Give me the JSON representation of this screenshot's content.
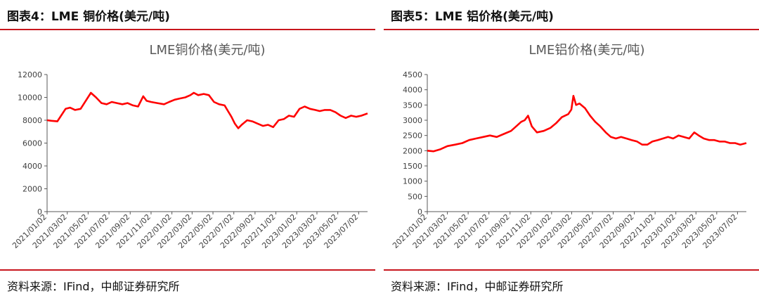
{
  "panels": [
    {
      "figure_title": "图表4：LME 铜价格(美元/吨)",
      "source": "资料来源：IFind，中邮证券研究所",
      "chart_data": {
        "type": "line",
        "title": "LME铜价格(美元/吨)",
        "xlabel": "",
        "ylabel": "",
        "ylim": [
          0,
          12000
        ],
        "yticks": [
          0,
          2000,
          4000,
          6000,
          8000,
          10000,
          12000
        ],
        "x_tick_labels": [
          "2021/01/02",
          "2021/03/02",
          "2021/05/02",
          "2021/07/02",
          "2021/09/02",
          "2021/11/02",
          "2022/01/02",
          "2022/03/02",
          "2022/05/02",
          "2022/07/02",
          "2022/09/02",
          "2022/11/02",
          "2023/01/02",
          "2023/03/02",
          "2023/05/02",
          "2023/07/02"
        ],
        "grid": false,
        "legend": "none",
        "line_color": "#ff0000",
        "x": [
          "2021/01/02",
          "2021/01/15",
          "2021/02/01",
          "2021/02/25",
          "2021/03/10",
          "2021/03/25",
          "2021/04/10",
          "2021/04/25",
          "2021/05/10",
          "2021/05/25",
          "2021/06/10",
          "2021/06/25",
          "2021/07/10",
          "2021/07/25",
          "2021/08/10",
          "2021/08/25",
          "2021/09/10",
          "2021/09/25",
          "2021/10/10",
          "2021/10/20",
          "2021/11/02",
          "2021/11/20",
          "2021/12/10",
          "2021/12/25",
          "2022/01/10",
          "2022/01/25",
          "2022/02/10",
          "2022/02/25",
          "2022/03/07",
          "2022/03/20",
          "2022/04/05",
          "2022/04/20",
          "2022/05/05",
          "2022/05/20",
          "2022/06/05",
          "2022/06/15",
          "2022/06/25",
          "2022/07/05",
          "2022/07/15",
          "2022/07/25",
          "2022/08/10",
          "2022/08/25",
          "2022/09/10",
          "2022/09/25",
          "2022/10/10",
          "2022/10/25",
          "2022/11/10",
          "2022/11/25",
          "2022/12/10",
          "2022/12/25",
          "2023/01/10",
          "2023/01/25",
          "2023/02/10",
          "2023/02/25",
          "2023/03/10",
          "2023/03/25",
          "2023/04/10",
          "2023/04/25",
          "2023/05/10",
          "2023/05/25",
          "2023/06/10",
          "2023/06/25",
          "2023/07/10",
          "2023/07/28"
        ],
        "values": [
          8000,
          7950,
          7900,
          9000,
          9100,
          8900,
          9000,
          9700,
          10400,
          10000,
          9500,
          9400,
          9600,
          9500,
          9400,
          9500,
          9300,
          9200,
          10100,
          9700,
          9600,
          9500,
          9400,
          9600,
          9800,
          9900,
          10000,
          10200,
          10400,
          10200,
          10300,
          10200,
          9600,
          9400,
          9300,
          8800,
          8300,
          7700,
          7300,
          7600,
          8000,
          7900,
          7700,
          7500,
          7600,
          7400,
          8000,
          8100,
          8400,
          8300,
          9000,
          9200,
          9000,
          8900,
          8800,
          8900,
          8900,
          8700,
          8400,
          8200,
          8400,
          8300,
          8400,
          8600
        ]
      }
    },
    {
      "figure_title": "图表5：LME 铝价格(美元/吨)",
      "source": "资料来源：IFind，中邮证券研究所",
      "chart_data": {
        "type": "line",
        "title": "LME铝价格(美元/吨)",
        "xlabel": "",
        "ylabel": "",
        "ylim": [
          0,
          4500
        ],
        "yticks": [
          0,
          500,
          1000,
          1500,
          2000,
          2500,
          3000,
          3500,
          4000,
          4500
        ],
        "x_tick_labels": [
          "2021/01/02",
          "2021/03/02",
          "2021/05/02",
          "2021/07/02",
          "2021/09/02",
          "2021/11/02",
          "2022/01/02",
          "2022/03/02",
          "2022/05/02",
          "2022/07/02",
          "2022/09/02",
          "2022/11/02",
          "2023/01/02",
          "2023/03/02",
          "2023/05/02",
          "2023/07/02"
        ],
        "grid": false,
        "legend": "none",
        "line_color": "#ff0000",
        "x": [
          "2021/01/02",
          "2021/01/20",
          "2021/02/10",
          "2021/03/02",
          "2021/03/25",
          "2021/04/15",
          "2021/05/05",
          "2021/05/25",
          "2021/06/15",
          "2021/07/05",
          "2021/07/25",
          "2021/08/15",
          "2021/09/05",
          "2021/09/20",
          "2021/10/05",
          "2021/10/15",
          "2021/10/25",
          "2021/11/05",
          "2021/11/20",
          "2021/12/10",
          "2021/12/30",
          "2022/01/15",
          "2022/02/01",
          "2022/02/20",
          "2022/03/01",
          "2022/03/07",
          "2022/03/15",
          "2022/03/25",
          "2022/04/10",
          "2022/04/25",
          "2022/05/10",
          "2022/05/25",
          "2022/06/10",
          "2022/06/25",
          "2022/07/10",
          "2022/07/25",
          "2022/08/10",
          "2022/08/25",
          "2022/09/10",
          "2022/09/25",
          "2022/10/10",
          "2022/10/25",
          "2022/11/10",
          "2022/11/25",
          "2022/12/10",
          "2022/12/25",
          "2023/01/10",
          "2023/01/25",
          "2023/02/10",
          "2023/02/25",
          "2023/03/10",
          "2023/03/25",
          "2023/04/10",
          "2023/04/25",
          "2023/05/10",
          "2023/05/25",
          "2023/06/10",
          "2023/06/25",
          "2023/07/10",
          "2023/07/28"
        ],
        "values": [
          2000,
          1980,
          2050,
          2150,
          2200,
          2250,
          2350,
          2400,
          2450,
          2500,
          2450,
          2550,
          2650,
          2800,
          2950,
          3000,
          3150,
          2800,
          2600,
          2650,
          2750,
          2900,
          3100,
          3200,
          3350,
          3800,
          3500,
          3550,
          3400,
          3150,
          2950,
          2800,
          2600,
          2450,
          2400,
          2450,
          2400,
          2350,
          2300,
          2200,
          2200,
          2300,
          2350,
          2400,
          2450,
          2400,
          2500,
          2450,
          2400,
          2600,
          2500,
          2400,
          2350,
          2350,
          2300,
          2300,
          2250,
          2250,
          2200,
          2250
        ]
      }
    }
  ]
}
